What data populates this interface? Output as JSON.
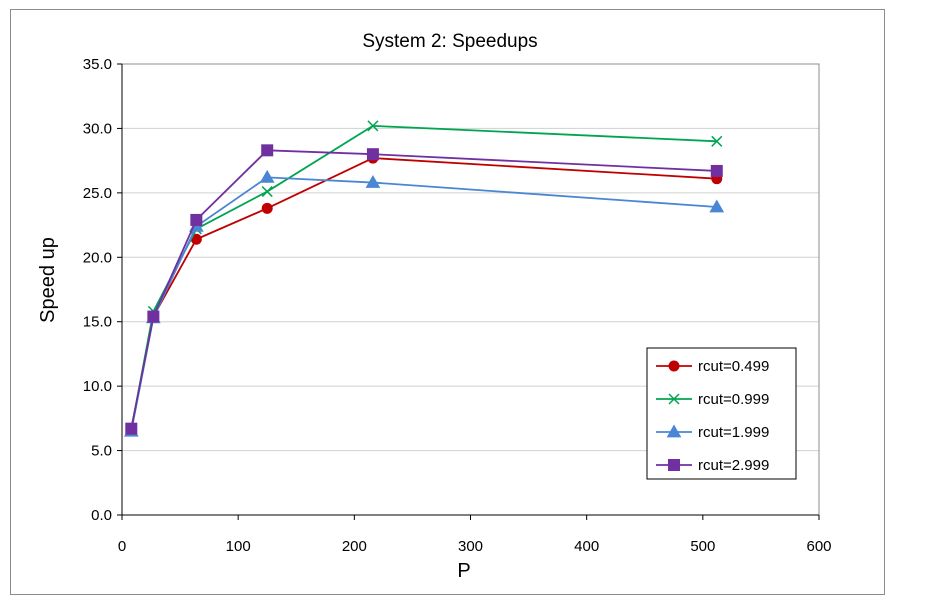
{
  "chart_data": {
    "type": "line",
    "title": "System 2: Speedups",
    "xlabel": "P",
    "ylabel": "Speed up",
    "xlim": [
      0,
      600
    ],
    "ylim": [
      0,
      35
    ],
    "xticks": [
      0,
      100,
      200,
      300,
      400,
      500,
      600
    ],
    "yticks": [
      0,
      5,
      10,
      15,
      20,
      25,
      30,
      35
    ],
    "xtick_labels": [
      "0",
      "100",
      "200",
      "300",
      "400",
      "500",
      "600"
    ],
    "ytick_labels": [
      "0.0",
      "5.0",
      "10.0",
      "15.0",
      "20.0",
      "25.0",
      "30.0",
      "35.0"
    ],
    "grid": "horizontal",
    "legend_position": "bottom-right",
    "series": [
      {
        "name": "rcut=0.499",
        "color": "#c00000",
        "marker": "circle",
        "x": [
          8,
          27,
          64,
          125,
          216,
          512
        ],
        "y": [
          6.7,
          15.4,
          21.4,
          23.8,
          27.7,
          26.1
        ]
      },
      {
        "name": "rcut=0.999",
        "color": "#00a550",
        "marker": "x",
        "x": [
          8,
          27,
          64,
          125,
          216,
          512
        ],
        "y": [
          6.6,
          15.8,
          22.2,
          25.1,
          30.2,
          29.0
        ]
      },
      {
        "name": "rcut=1.999",
        "color": "#4a86d4",
        "marker": "triangle",
        "x": [
          8,
          27,
          64,
          125,
          216,
          512
        ],
        "y": [
          6.5,
          15.3,
          22.4,
          26.2,
          25.8,
          23.9
        ]
      },
      {
        "name": "rcut=2.999",
        "color": "#7030a0",
        "marker": "square",
        "x": [
          8,
          27,
          64,
          125,
          216,
          512
        ],
        "y": [
          6.7,
          15.4,
          22.9,
          28.3,
          28.0,
          26.7
        ]
      }
    ]
  }
}
